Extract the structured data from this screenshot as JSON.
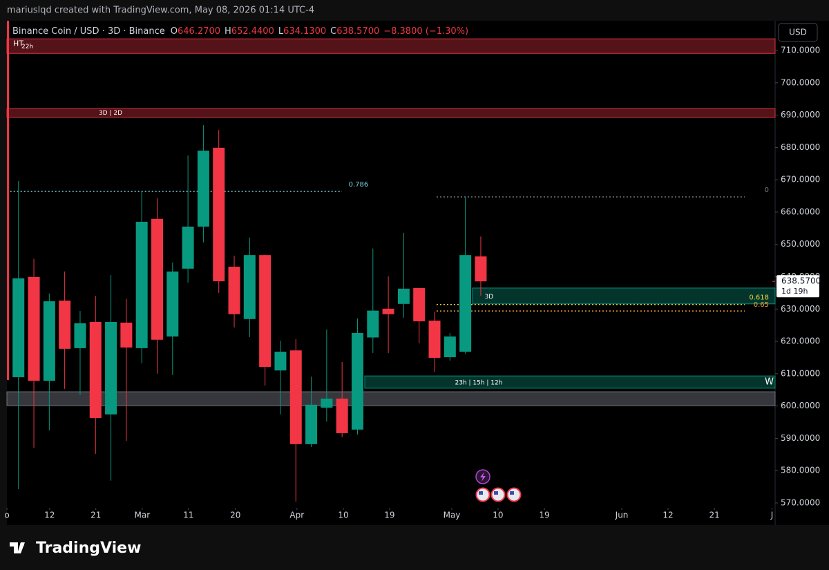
{
  "header": {
    "attribution": "mariuslqd created with TradingView.com, May 08, 2026 01:14 UTC-4"
  },
  "currency_button": "USD",
  "footer": {
    "logo": "TradingView"
  },
  "chart_data": {
    "type": "candlestick",
    "title": "Binance Coin / USD · 3D · Binance",
    "legend": {
      "o_label": "O",
      "o": "646.2700",
      "h_label": "H",
      "h": "652.4400",
      "l_label": "L",
      "l": "634.1300",
      "c_label": "C",
      "c": "638.5700",
      "change": "−8.3800 (−1.30%)"
    },
    "open": [
      608.9,
      639.9,
      607.8,
      632.6,
      617.9,
      626.0,
      597.4,
      625.8,
      617.9,
      657.9,
      621.5,
      642.5,
      655.5,
      679.9,
      643.1,
      626.9,
      646.7,
      611.0,
      617.2,
      588.2,
      599.5,
      602.3,
      592.7,
      621.2,
      630.1,
      631.6,
      636.5,
      626.4,
      615.1,
      616.8,
      646.27
    ],
    "high": [
      669.6,
      645.5,
      634.8,
      641.6,
      629.4,
      634.1,
      640.5,
      633.1,
      666.2,
      664.3,
      644.4,
      677.5,
      686.9,
      685.4,
      646.5,
      652.1,
      646.7,
      620.2,
      620.7,
      609.1,
      623.7,
      613.6,
      627.1,
      648.7,
      640.1,
      653.6,
      636.5,
      629.2,
      622.6,
      664.7,
      652.44
    ],
    "low": [
      574.3,
      587.1,
      592.5,
      605.3,
      603.4,
      585.2,
      576.9,
      589.2,
      613.2,
      610.0,
      609.6,
      638.2,
      650.6,
      635.0,
      624.3,
      621.3,
      606.3,
      597.4,
      570.4,
      587.3,
      595.2,
      590.3,
      591.2,
      616.4,
      616.4,
      627.3,
      619.4,
      610.6,
      614.0,
      616.2,
      634.13
    ],
    "close": [
      639.5,
      607.8,
      632.4,
      617.7,
      625.6,
      596.3,
      626.0,
      618.1,
      657.0,
      620.5,
      641.6,
      655.5,
      679.0,
      638.6,
      628.4,
      646.7,
      612.1,
      616.8,
      588.2,
      600.4,
      602.3,
      591.6,
      622.6,
      629.5,
      628.4,
      636.3,
      626.2,
      614.9,
      621.5,
      646.7,
      638.57
    ],
    "up_color": "#089981",
    "down_color": "#f23645",
    "xlim": [
      -0.75,
      49.1
    ],
    "xticks": [
      {
        "value": -0.75,
        "label": "o"
      },
      {
        "value": 2.02,
        "label": "12"
      },
      {
        "value": 5.02,
        "label": "21"
      },
      {
        "value": 8.03,
        "label": "Mar"
      },
      {
        "value": 11.03,
        "label": "11"
      },
      {
        "value": 14.08,
        "label": "20"
      },
      {
        "value": 18.07,
        "label": "Apr"
      },
      {
        "value": 21.08,
        "label": "10"
      },
      {
        "value": 24.08,
        "label": "19"
      },
      {
        "value": 28.12,
        "label": "May"
      },
      {
        "value": 31.12,
        "label": "10"
      },
      {
        "value": 34.13,
        "label": "19"
      },
      {
        "value": 39.15,
        "label": "Jun"
      },
      {
        "value": 42.15,
        "label": "12"
      },
      {
        "value": 45.16,
        "label": "21"
      },
      {
        "value": 48.9,
        "label": "J"
      }
    ],
    "ylim": [
      568.5,
      719.2
    ],
    "yticks": [
      {
        "value": 570,
        "label": "570.0000"
      },
      {
        "value": 580,
        "label": "580.0000"
      },
      {
        "value": 590,
        "label": "590.0000"
      },
      {
        "value": 600,
        "label": "600.0000"
      },
      {
        "value": 610,
        "label": "610.0000"
      },
      {
        "value": 620,
        "label": "620.0000"
      },
      {
        "value": 630,
        "label": "630.0000"
      },
      {
        "value": 640,
        "label": "640.0000"
      },
      {
        "value": 650,
        "label": "650.0000"
      },
      {
        "value": 660,
        "label": "660.0000"
      },
      {
        "value": 670,
        "label": "670.0000"
      },
      {
        "value": 680,
        "label": "680.0000"
      },
      {
        "value": 690,
        "label": "690.0000"
      },
      {
        "value": 700,
        "label": "700.0000"
      },
      {
        "value": 710,
        "label": "710.0000"
      }
    ],
    "last_price": 638.57,
    "last_price_label": "638.5700",
    "countdown": "1d 19h",
    "zones": [
      {
        "label": "HT",
        "timer": "22h",
        "range": [
          709.1,
          713.6
        ],
        "color": "#f23645"
      },
      {
        "label": "3D | 2D",
        "range": [
          689.3,
          692.0
        ],
        "color": "#f23645"
      },
      {
        "label": "3D",
        "range": [
          631.6,
          636.5
        ],
        "x_range": [
          29.46,
          49.1
        ],
        "color": "#089981"
      },
      {
        "label": "23h | 15h | 12h",
        "side_label": "W",
        "range": [
          605.5,
          609.3
        ],
        "x_range": [
          22.47,
          49.1
        ],
        "color": "#089981"
      },
      {
        "range": [
          600.1,
          604.4
        ],
        "color": "#787b86"
      }
    ],
    "fib_levels": [
      {
        "label": "0.786",
        "value": 666.4,
        "x_range": [
          -0.54,
          20.99
        ],
        "color": "#7fd0dc"
      },
      {
        "label": "0",
        "value": 664.7,
        "x_range": [
          27.13,
          47.13
        ],
        "color": "#787b86"
      },
      {
        "label": "0.618",
        "value": 631.4,
        "x_range": [
          27.13,
          47.13
        ],
        "color": "#e6d23c"
      },
      {
        "label": "0.65",
        "value": 629.4,
        "x_range": [
          27.13,
          47.13
        ],
        "color": "#f7a23c"
      }
    ]
  }
}
